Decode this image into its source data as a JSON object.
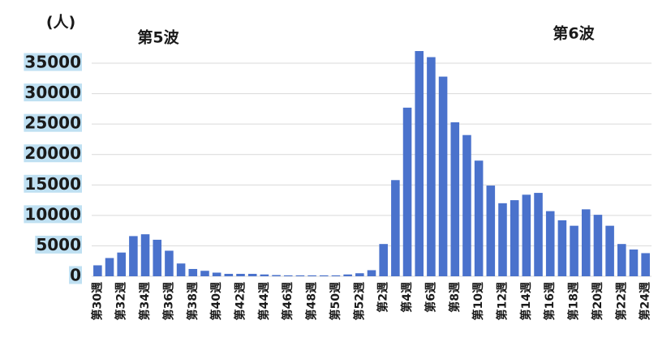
{
  "chart_data": {
    "type": "bar",
    "annotations": [
      "(人)",
      "第5波",
      "第6波"
    ],
    "categories": [
      "第30週",
      null,
      "第32週",
      null,
      "第34週",
      null,
      "第36週",
      null,
      "第38週",
      null,
      "第40週",
      null,
      "第42週",
      null,
      "第44週",
      null,
      "第46週",
      null,
      "第48週",
      null,
      "第50週",
      null,
      "第52週",
      null,
      "第2週",
      null,
      "第4週",
      null,
      "第6週",
      null,
      "第8週",
      null,
      "第10週",
      null,
      "第12週",
      null,
      "第14週",
      null,
      "第16週",
      null,
      "第18週",
      null,
      "第20週",
      null,
      "第22週",
      null,
      "第24週"
    ],
    "values": [
      1800,
      3000,
      3900,
      6600,
      6900,
      6000,
      4200,
      2100,
      1200,
      900,
      600,
      400,
      400,
      400,
      300,
      200,
      150,
      150,
      150,
      150,
      150,
      300,
      500,
      1000,
      5300,
      15800,
      27700,
      37000,
      36000,
      32800,
      25300,
      23200,
      19000,
      14900,
      12000,
      12500,
      13400,
      13700,
      10700,
      9200,
      8300,
      11000,
      10100,
      8300,
      5300,
      4400,
      3800
    ],
    "color": "#4a72cc",
    "ylim": [
      0,
      38000
    ],
    "yticks": [
      0,
      5000,
      10000,
      15000,
      20000,
      25000,
      30000,
      35000
    ],
    "grid": true
  }
}
